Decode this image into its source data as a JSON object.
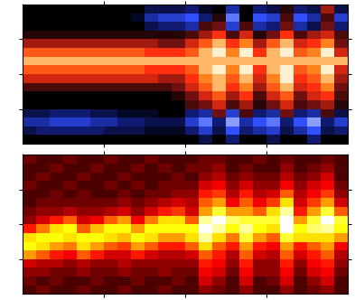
{
  "chart_data": [
    {
      "type": "heatmap",
      "xlim": [
        0,
        24
      ],
      "ylim": [
        0,
        16
      ],
      "xticks": [
        6,
        12,
        18
      ],
      "yticks": [
        4,
        8,
        12
      ],
      "tick_labels": false,
      "color_range": [
        -1,
        1
      ],
      "cells": [
        [
          0,
          0,
          0,
          0,
          0,
          0,
          0,
          0,
          0,
          0,
          0,
          0,
          0,
          -0.2,
          0,
          -0.3,
          0,
          0,
          -0.2,
          0,
          0,
          -0.3,
          0,
          0
        ],
        [
          -0.2,
          -0.3,
          -0.3,
          -0.3,
          -0.3,
          -0.3,
          -0.2,
          -0.2,
          -0.2,
          -0.1,
          -0.1,
          -0.1,
          -0.3,
          -0.5,
          -0.2,
          -0.6,
          -0.3,
          -0.4,
          -0.5,
          -0.2,
          -0.4,
          -0.6,
          -0.2,
          -0.3
        ],
        [
          -0.4,
          -0.4,
          -0.5,
          -0.5,
          -0.5,
          -0.4,
          -0.4,
          -0.3,
          -0.3,
          -0.2,
          -0.2,
          -0.2,
          -0.5,
          -0.7,
          -0.3,
          -0.8,
          -0.4,
          -0.6,
          -0.7,
          -0.3,
          -0.6,
          -0.8,
          -0.3,
          -0.5
        ],
        [
          -0.2,
          -0.2,
          -0.3,
          -0.3,
          -0.3,
          -0.2,
          -0.2,
          -0.1,
          -0.1,
          -0.1,
          0,
          0,
          -0.3,
          -0.4,
          0.3,
          -0.5,
          0.2,
          -0.3,
          -0.4,
          0.3,
          -0.3,
          -0.4,
          0.2,
          -0.2
        ],
        [
          0,
          0,
          0,
          0,
          0,
          0,
          0,
          0,
          0,
          0,
          0,
          0,
          0.2,
          0.3,
          0.5,
          0.2,
          0.4,
          0.1,
          0.3,
          0.5,
          0.2,
          0.3,
          0.4,
          0.1
        ],
        [
          0,
          0,
          0,
          0,
          0,
          0,
          0,
          0,
          0,
          0,
          0,
          0.1,
          0.3,
          0.5,
          0.7,
          0.4,
          0.6,
          0.2,
          0.5,
          0.7,
          0.3,
          0.5,
          0.6,
          0.2
        ],
        [
          0.2,
          0.2,
          0.2,
          0.2,
          0.2,
          0.2,
          0.2,
          0.2,
          0.2,
          0.2,
          0.2,
          0.3,
          0.5,
          0.7,
          0.9,
          0.6,
          0.8,
          0.4,
          0.7,
          0.9,
          0.5,
          0.6,
          0.8,
          0.3
        ],
        [
          0.5,
          0.5,
          0.5,
          0.5,
          0.5,
          0.5,
          0.5,
          0.5,
          0.5,
          0.5,
          0.4,
          0.4,
          0.6,
          0.8,
          0.9,
          0.7,
          0.9,
          0.5,
          0.8,
          1.0,
          0.6,
          0.7,
          0.9,
          0.4
        ],
        [
          0.7,
          0.7,
          0.7,
          0.7,
          0.7,
          0.7,
          0.7,
          0.7,
          0.7,
          0.6,
          0.6,
          0.6,
          0.7,
          0.9,
          1.0,
          0.8,
          1.0,
          0.6,
          0.9,
          1.0,
          0.7,
          0.8,
          1.0,
          0.5
        ],
        [
          0.9,
          0.9,
          0.9,
          0.9,
          0.9,
          0.9,
          0.9,
          0.9,
          0.9,
          0.9,
          0.9,
          0.9,
          0.9,
          0.9,
          0.9,
          0.9,
          0.9,
          0.9,
          0.9,
          0.9,
          0.9,
          0.9,
          0.9,
          0.9
        ],
        [
          0.7,
          0.7,
          0.7,
          0.7,
          0.7,
          0.7,
          0.7,
          0.7,
          0.7,
          0.6,
          0.6,
          0.6,
          0.7,
          0.9,
          1.0,
          0.8,
          1.0,
          0.6,
          0.9,
          1.0,
          0.7,
          0.8,
          1.0,
          0.5
        ],
        [
          0.4,
          0.4,
          0.4,
          0.4,
          0.4,
          0.4,
          0.4,
          0.4,
          0.4,
          0.4,
          0.3,
          0.3,
          0.5,
          0.7,
          0.9,
          0.6,
          0.8,
          0.4,
          0.7,
          0.9,
          0.5,
          0.6,
          0.8,
          0.3
        ],
        [
          0.1,
          0.1,
          0.1,
          0.1,
          0.1,
          0.1,
          0.1,
          0.1,
          0.1,
          0.1,
          0.1,
          0.1,
          0.2,
          0.4,
          0.6,
          0.2,
          0.5,
          0.1,
          0.3,
          0.6,
          0.2,
          0.4,
          0.5,
          0.2
        ],
        [
          0,
          0,
          0,
          0,
          0,
          0,
          0,
          0,
          0,
          -0.2,
          -0.3,
          -0.3,
          -0.4,
          0.2,
          0.3,
          -0.5,
          0.2,
          -0.4,
          -0.3,
          0.3,
          -0.4,
          -0.2,
          0.3,
          -0.3
        ],
        [
          0,
          0,
          0,
          0,
          0,
          0,
          0,
          0,
          -0.1,
          -0.4,
          -0.5,
          -0.5,
          -0.6,
          -0.3,
          0.1,
          -0.7,
          0.0,
          -0.6,
          -0.5,
          0.2,
          -0.6,
          -0.4,
          0.2,
          -0.5
        ],
        [
          0,
          0,
          0,
          0,
          0,
          0,
          0,
          0,
          0,
          -0.2,
          -0.2,
          -0.2,
          -0.3,
          -0.1,
          0,
          -0.4,
          0,
          -0.3,
          -0.2,
          0.1,
          -0.3,
          -0.2,
          0.4,
          -0.2
        ]
      ]
    },
    {
      "type": "heatmap",
      "xlim": [
        0,
        24
      ],
      "ylim": [
        0,
        16
      ],
      "xticks": [
        6,
        12,
        18
      ],
      "yticks": [
        4,
        8,
        12
      ],
      "tick_labels": false,
      "color_range": [
        0,
        1
      ],
      "cells": [
        [
          0.1,
          0.15,
          0.1,
          0.1,
          0.15,
          0.1,
          0.1,
          0.15,
          0.1,
          0.1,
          0.15,
          0.1,
          0.1,
          0.2,
          0.15,
          0.1,
          0.2,
          0.1,
          0.1,
          0.2,
          0.1,
          0.15,
          0.2,
          0.1
        ],
        [
          0.15,
          0.1,
          0.15,
          0.1,
          0.1,
          0.15,
          0.1,
          0.1,
          0.15,
          0.1,
          0.1,
          0.15,
          0.1,
          0.3,
          0.2,
          0.1,
          0.3,
          0.1,
          0.15,
          0.3,
          0.1,
          0.2,
          0.3,
          0.1
        ],
        [
          0.2,
          0.2,
          0.15,
          0.15,
          0.2,
          0.15,
          0.15,
          0.2,
          0.15,
          0.15,
          0.2,
          0.15,
          0.15,
          0.35,
          0.3,
          0.15,
          0.35,
          0.2,
          0.2,
          0.35,
          0.15,
          0.3,
          0.35,
          0.15
        ],
        [
          0.3,
          0.25,
          0.25,
          0.2,
          0.25,
          0.2,
          0.2,
          0.25,
          0.2,
          0.2,
          0.2,
          0.2,
          0.2,
          0.4,
          0.35,
          0.2,
          0.4,
          0.2,
          0.2,
          0.4,
          0.2,
          0.35,
          0.4,
          0.2
        ],
        [
          0.6,
          0.5,
          0.4,
          0.35,
          0.5,
          0.4,
          0.3,
          0.3,
          0.4,
          0.3,
          0.25,
          0.25,
          0.3,
          0.5,
          0.4,
          0.25,
          0.5,
          0.3,
          0.25,
          0.5,
          0.3,
          0.4,
          0.5,
          0.25
        ],
        [
          0.75,
          0.7,
          0.6,
          0.55,
          0.7,
          0.6,
          0.5,
          0.45,
          0.6,
          0.5,
          0.4,
          0.4,
          0.5,
          0.7,
          0.5,
          0.4,
          0.6,
          0.4,
          0.35,
          0.6,
          0.4,
          0.5,
          0.6,
          0.35
        ],
        [
          0.7,
          0.75,
          0.75,
          0.7,
          0.75,
          0.75,
          0.7,
          0.65,
          0.75,
          0.7,
          0.6,
          0.6,
          0.7,
          0.9,
          0.7,
          0.55,
          0.8,
          0.6,
          0.5,
          0.8,
          0.7,
          0.7,
          0.7,
          0.6
        ],
        [
          0.4,
          0.55,
          0.7,
          0.75,
          0.5,
          0.65,
          0.75,
          0.75,
          0.6,
          0.75,
          0.75,
          0.75,
          0.75,
          1.0,
          0.9,
          0.75,
          0.9,
          0.75,
          0.7,
          1.0,
          0.75,
          0.85,
          0.9,
          0.75
        ],
        [
          0.2,
          0.3,
          0.4,
          0.5,
          0.3,
          0.35,
          0.5,
          0.6,
          0.35,
          0.55,
          0.7,
          0.7,
          0.5,
          0.9,
          1.0,
          0.85,
          0.8,
          0.8,
          0.8,
          1.0,
          0.6,
          0.8,
          1.0,
          0.8
        ],
        [
          0.15,
          0.2,
          0.2,
          0.25,
          0.2,
          0.2,
          0.25,
          0.3,
          0.2,
          0.3,
          0.4,
          0.45,
          0.3,
          0.6,
          0.8,
          0.6,
          0.6,
          0.5,
          0.7,
          0.9,
          0.4,
          0.6,
          0.8,
          0.5
        ],
        [
          0.1,
          0.15,
          0.15,
          0.15,
          0.15,
          0.15,
          0.15,
          0.2,
          0.15,
          0.2,
          0.25,
          0.3,
          0.25,
          0.5,
          0.6,
          0.35,
          0.5,
          0.35,
          0.45,
          0.7,
          0.3,
          0.45,
          0.6,
          0.3
        ],
        [
          0.1,
          0.1,
          0.15,
          0.1,
          0.15,
          0.1,
          0.1,
          0.15,
          0.1,
          0.15,
          0.15,
          0.2,
          0.2,
          0.4,
          0.45,
          0.25,
          0.4,
          0.25,
          0.3,
          0.5,
          0.25,
          0.35,
          0.45,
          0.2
        ],
        [
          0.15,
          0.1,
          0.1,
          0.15,
          0.1,
          0.1,
          0.15,
          0.1,
          0.15,
          0.1,
          0.15,
          0.15,
          0.15,
          0.3,
          0.35,
          0.2,
          0.3,
          0.2,
          0.2,
          0.35,
          0.2,
          0.3,
          0.35,
          0.15
        ],
        [
          0.1,
          0.15,
          0.1,
          0.1,
          0.15,
          0.1,
          0.1,
          0.15,
          0.1,
          0.1,
          0.1,
          0.15,
          0.1,
          0.2,
          0.25,
          0.15,
          0.2,
          0.15,
          0.15,
          0.25,
          0.15,
          0.2,
          0.3,
          0.1
        ],
        [
          0.1,
          0.1,
          0.15,
          0.1,
          0.1,
          0.15,
          0.1,
          0.1,
          0.15,
          0.1,
          0.15,
          0.1,
          0.15,
          0.15,
          0.2,
          0.1,
          0.15,
          0.1,
          0.1,
          0.2,
          0.1,
          0.15,
          0.2,
          0.1
        ],
        [
          0.15,
          0.1,
          0.1,
          0.15,
          0.1,
          0.1,
          0.15,
          0.1,
          0.1,
          0.15,
          0.1,
          0.1,
          0.1,
          0.15,
          0.15,
          0.1,
          0.1,
          0.15,
          0.1,
          0.15,
          0.1,
          0.1,
          0.15,
          0.1
        ]
      ]
    }
  ]
}
